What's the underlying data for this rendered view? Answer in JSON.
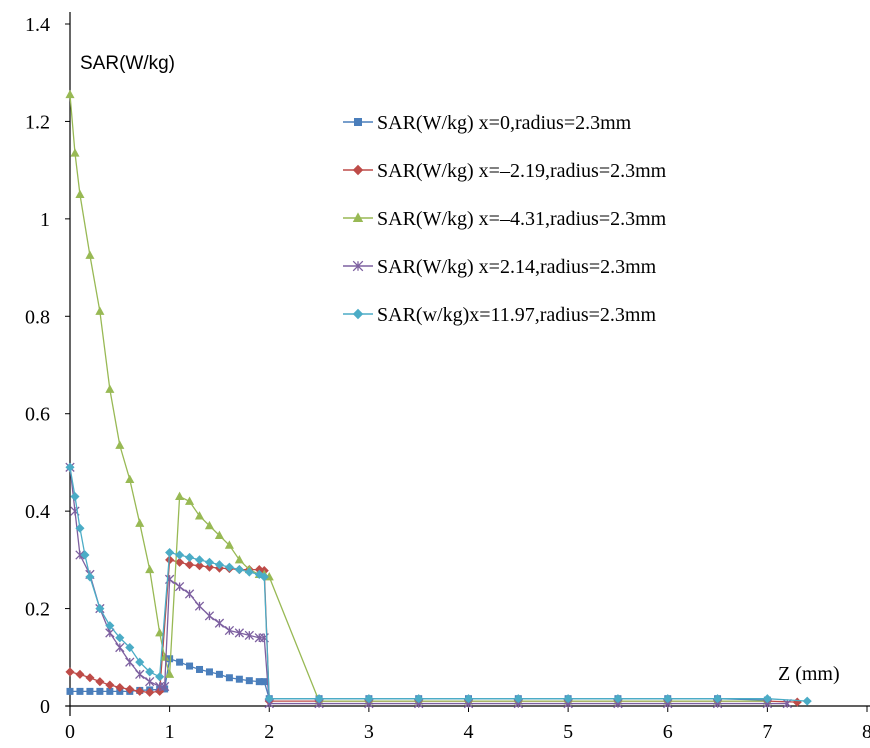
{
  "chart_data": {
    "type": "line",
    "title": "",
    "ylabel": "SAR(W/kg)",
    "xlabel": "Z (mm)",
    "xlim": [
      0,
      8
    ],
    "ylim": [
      0,
      1.4
    ],
    "x_ticks": [
      0,
      1,
      2,
      3,
      4,
      5,
      6,
      7,
      8
    ],
    "y_ticks": [
      0,
      0.2,
      0.4,
      0.6,
      0.8,
      1,
      1.2,
      1.4
    ],
    "grid": false,
    "legend_position": "upper-right inside plot",
    "series": [
      {
        "name": "SAR(W/kg) x=0,radius=2.3mm",
        "color": "#4a7ebb",
        "marker": "square",
        "x": [
          0,
          0.1,
          0.2,
          0.3,
          0.4,
          0.5,
          0.6,
          0.7,
          0.8,
          0.9,
          0.95,
          1.0,
          1.1,
          1.2,
          1.3,
          1.4,
          1.5,
          1.6,
          1.7,
          1.8,
          1.9,
          1.95,
          2.0,
          2.5,
          3.0,
          3.5,
          4.0,
          4.5,
          5.0,
          5.5,
          6.0,
          6.5,
          7.0
        ],
        "y": [
          0.03,
          0.03,
          0.03,
          0.03,
          0.03,
          0.03,
          0.03,
          0.032,
          0.033,
          0.034,
          0.035,
          0.097,
          0.09,
          0.082,
          0.075,
          0.07,
          0.065,
          0.058,
          0.055,
          0.052,
          0.05,
          0.05,
          0.015,
          0.015,
          0.015,
          0.015,
          0.015,
          0.015,
          0.015,
          0.015,
          0.015,
          0.015,
          0.012
        ]
      },
      {
        "name": "SAR(W/kg) x=–2.19,radius=2.3mm",
        "color": "#be4b48",
        "marker": "diamond",
        "x": [
          0,
          0.1,
          0.2,
          0.3,
          0.4,
          0.5,
          0.6,
          0.7,
          0.8,
          0.9,
          1.0,
          1.1,
          1.2,
          1.3,
          1.4,
          1.5,
          1.6,
          1.7,
          1.8,
          1.9,
          1.95,
          2.0,
          2.5,
          3.0,
          3.5,
          4.0,
          4.5,
          5.0,
          5.5,
          6.0,
          6.5,
          7.0,
          7.3
        ],
        "y": [
          0.07,
          0.065,
          0.058,
          0.05,
          0.043,
          0.038,
          0.034,
          0.03,
          0.028,
          0.03,
          0.3,
          0.295,
          0.29,
          0.288,
          0.285,
          0.283,
          0.282,
          0.28,
          0.28,
          0.28,
          0.278,
          0.01,
          0.01,
          0.01,
          0.01,
          0.01,
          0.01,
          0.01,
          0.01,
          0.01,
          0.01,
          0.01,
          0.008
        ]
      },
      {
        "name": "SAR(W/kg) x=–4.31,radius=2.3mm",
        "color": "#98b954",
        "marker": "triangle",
        "x": [
          0,
          0.05,
          0.1,
          0.2,
          0.3,
          0.4,
          0.5,
          0.6,
          0.7,
          0.8,
          0.9,
          0.95,
          1.0,
          1.1,
          1.2,
          1.3,
          1.4,
          1.5,
          1.6,
          1.7,
          1.8,
          1.9,
          1.95,
          2.0,
          2.5,
          3.0,
          3.5,
          4.0,
          4.5,
          5.0,
          5.5,
          6.0,
          6.5,
          7.0
        ],
        "y": [
          1.255,
          1.135,
          1.05,
          0.925,
          0.81,
          0.65,
          0.535,
          0.465,
          0.375,
          0.28,
          0.15,
          0.1,
          0.065,
          0.43,
          0.42,
          0.39,
          0.37,
          0.35,
          0.33,
          0.3,
          0.28,
          0.27,
          0.27,
          0.265,
          0.01,
          0.01,
          0.01,
          0.01,
          0.01,
          0.01,
          0.01,
          0.01,
          0.01,
          0.01
        ]
      },
      {
        "name": "SAR(W/kg) x=2.14,radius=2.3mm",
        "color": "#7d60a0",
        "marker": "cross",
        "x": [
          0,
          0.05,
          0.1,
          0.2,
          0.3,
          0.4,
          0.5,
          0.6,
          0.7,
          0.8,
          0.9,
          0.95,
          1.0,
          1.1,
          1.2,
          1.3,
          1.4,
          1.5,
          1.6,
          1.7,
          1.8,
          1.9,
          1.95,
          2.0,
          2.5,
          3.0,
          3.5,
          4.0,
          4.5,
          5.0,
          5.5,
          6.0,
          6.5,
          7.0,
          7.2
        ],
        "y": [
          0.49,
          0.4,
          0.31,
          0.27,
          0.2,
          0.15,
          0.12,
          0.09,
          0.065,
          0.05,
          0.04,
          0.04,
          0.26,
          0.245,
          0.23,
          0.205,
          0.185,
          0.17,
          0.155,
          0.15,
          0.145,
          0.14,
          0.14,
          0.005,
          0.005,
          0.005,
          0.005,
          0.005,
          0.005,
          0.005,
          0.005,
          0.005,
          0.005,
          0.005,
          0.005
        ]
      },
      {
        "name": "SAR(w/kg)x=11.97,radius=2.3mm",
        "color": "#4bacc6",
        "marker": "diamond",
        "x": [
          0,
          0.05,
          0.1,
          0.15,
          0.2,
          0.3,
          0.4,
          0.5,
          0.6,
          0.7,
          0.8,
          0.9,
          1.0,
          1.1,
          1.2,
          1.3,
          1.4,
          1.5,
          1.6,
          1.7,
          1.8,
          1.9,
          1.95,
          2.0,
          2.5,
          3.0,
          3.5,
          4.0,
          4.5,
          5.0,
          5.5,
          6.0,
          6.5,
          7.0,
          7.4
        ],
        "y": [
          0.49,
          0.43,
          0.365,
          0.31,
          0.265,
          0.2,
          0.165,
          0.14,
          0.12,
          0.09,
          0.07,
          0.06,
          0.315,
          0.31,
          0.305,
          0.3,
          0.295,
          0.29,
          0.285,
          0.28,
          0.275,
          0.27,
          0.265,
          0.015,
          0.015,
          0.015,
          0.015,
          0.015,
          0.015,
          0.015,
          0.015,
          0.015,
          0.015,
          0.015,
          0.01
        ]
      }
    ]
  }
}
